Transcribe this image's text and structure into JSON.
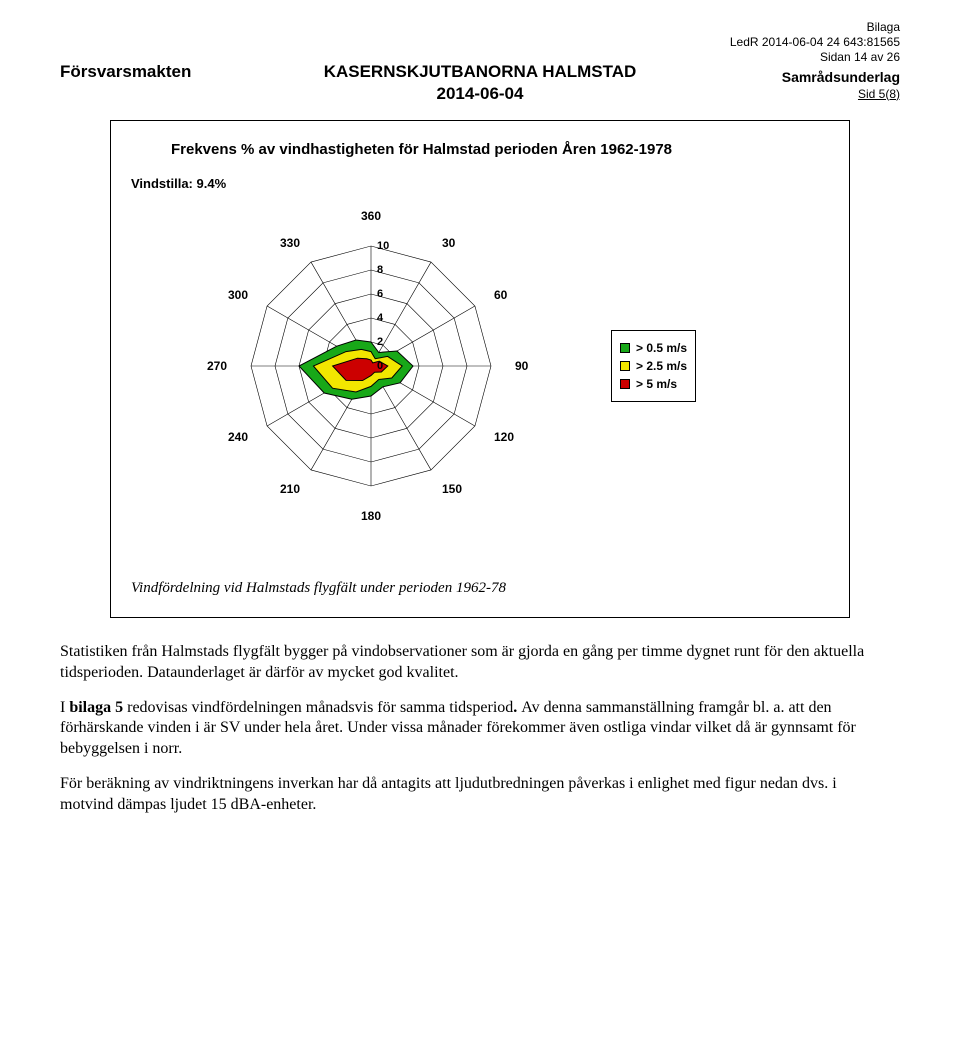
{
  "header": {
    "bilaga": "Bilaga",
    "ledr": "LedR 2014-06-04 24 643:81565",
    "sidan": "Sidan 14 av 26",
    "left": "Försvarsmakten",
    "center_title": "KASERNSKJUTBANORNA HALMSTAD",
    "center_date": "2014-06-04",
    "underlag": "Samrådsunderlag",
    "sid": "Sid 5(8)"
  },
  "chart": {
    "title": "Frekvens % av vindhastigheten för Halmstad perioden Åren 1962-1978",
    "calm_label": "Vindstilla: 9.4%",
    "axis": {
      "directions": [
        360,
        30,
        60,
        90,
        120,
        150,
        180,
        210,
        240,
        270,
        300,
        330
      ],
      "rings": [
        0,
        2,
        4,
        6,
        8,
        10
      ],
      "ring_r": [
        0,
        24,
        48,
        72,
        96,
        120
      ],
      "ring_label_offset_x": 6
    },
    "series": [
      {
        "name": "> 0.5 m/s",
        "color": "#18a818",
        "stroke": "#000000",
        "values": [
          2.0,
          1.3,
          2.5,
          3.5,
          2.8,
          2.0,
          2.5,
          3.2,
          4.5,
          6.0,
          3.3,
          2.5
        ]
      },
      {
        "name": "> 2.5 m/s",
        "color": "#f2e600",
        "stroke": "#000000",
        "values": [
          1.2,
          0.7,
          1.6,
          2.6,
          2.0,
          1.3,
          1.7,
          2.5,
          3.7,
          4.8,
          2.4,
          1.6
        ]
      },
      {
        "name": "> 5 m/s",
        "color": "#cc0000",
        "stroke": "#000000",
        "values": [
          0.5,
          0.3,
          0.8,
          1.4,
          1.0,
          0.6,
          0.8,
          1.4,
          2.4,
          3.2,
          1.3,
          0.7
        ]
      }
    ],
    "grid_color": "#000000",
    "grid_width": 0.6,
    "background": "#ffffff",
    "radius_max_value": 10,
    "caption": "Vindfördelning vid Halmstads flygfält under perioden 1962-78"
  },
  "text": {
    "p1": "Statistiken från Halmstads flygfält bygger på vindobservationer som är gjorda en gång per timme dygnet runt för den aktuella tidsperioden. Dataunderlaget är därför av mycket god kvalitet.",
    "p2a": "I ",
    "p2b_bold": "bilaga 5",
    "p2c": " redovisas vindfördelningen månadsvis för samma tidsperiod",
    "p2d_bold": ". ",
    "p2e": "Av denna sammanställning framgår bl. a. att den förhärskande vinden i är SV under hela året. Under vissa månader förekommer även ostliga vindar vilket då är gynnsamt för bebyggelsen i norr.",
    "p3": "För beräkning av vindriktningens inverkan har då antagits att ljudutbredningen påverkas i enlighet med figur nedan dvs. i motvind dämpas ljudet 15 dBA-enheter."
  }
}
